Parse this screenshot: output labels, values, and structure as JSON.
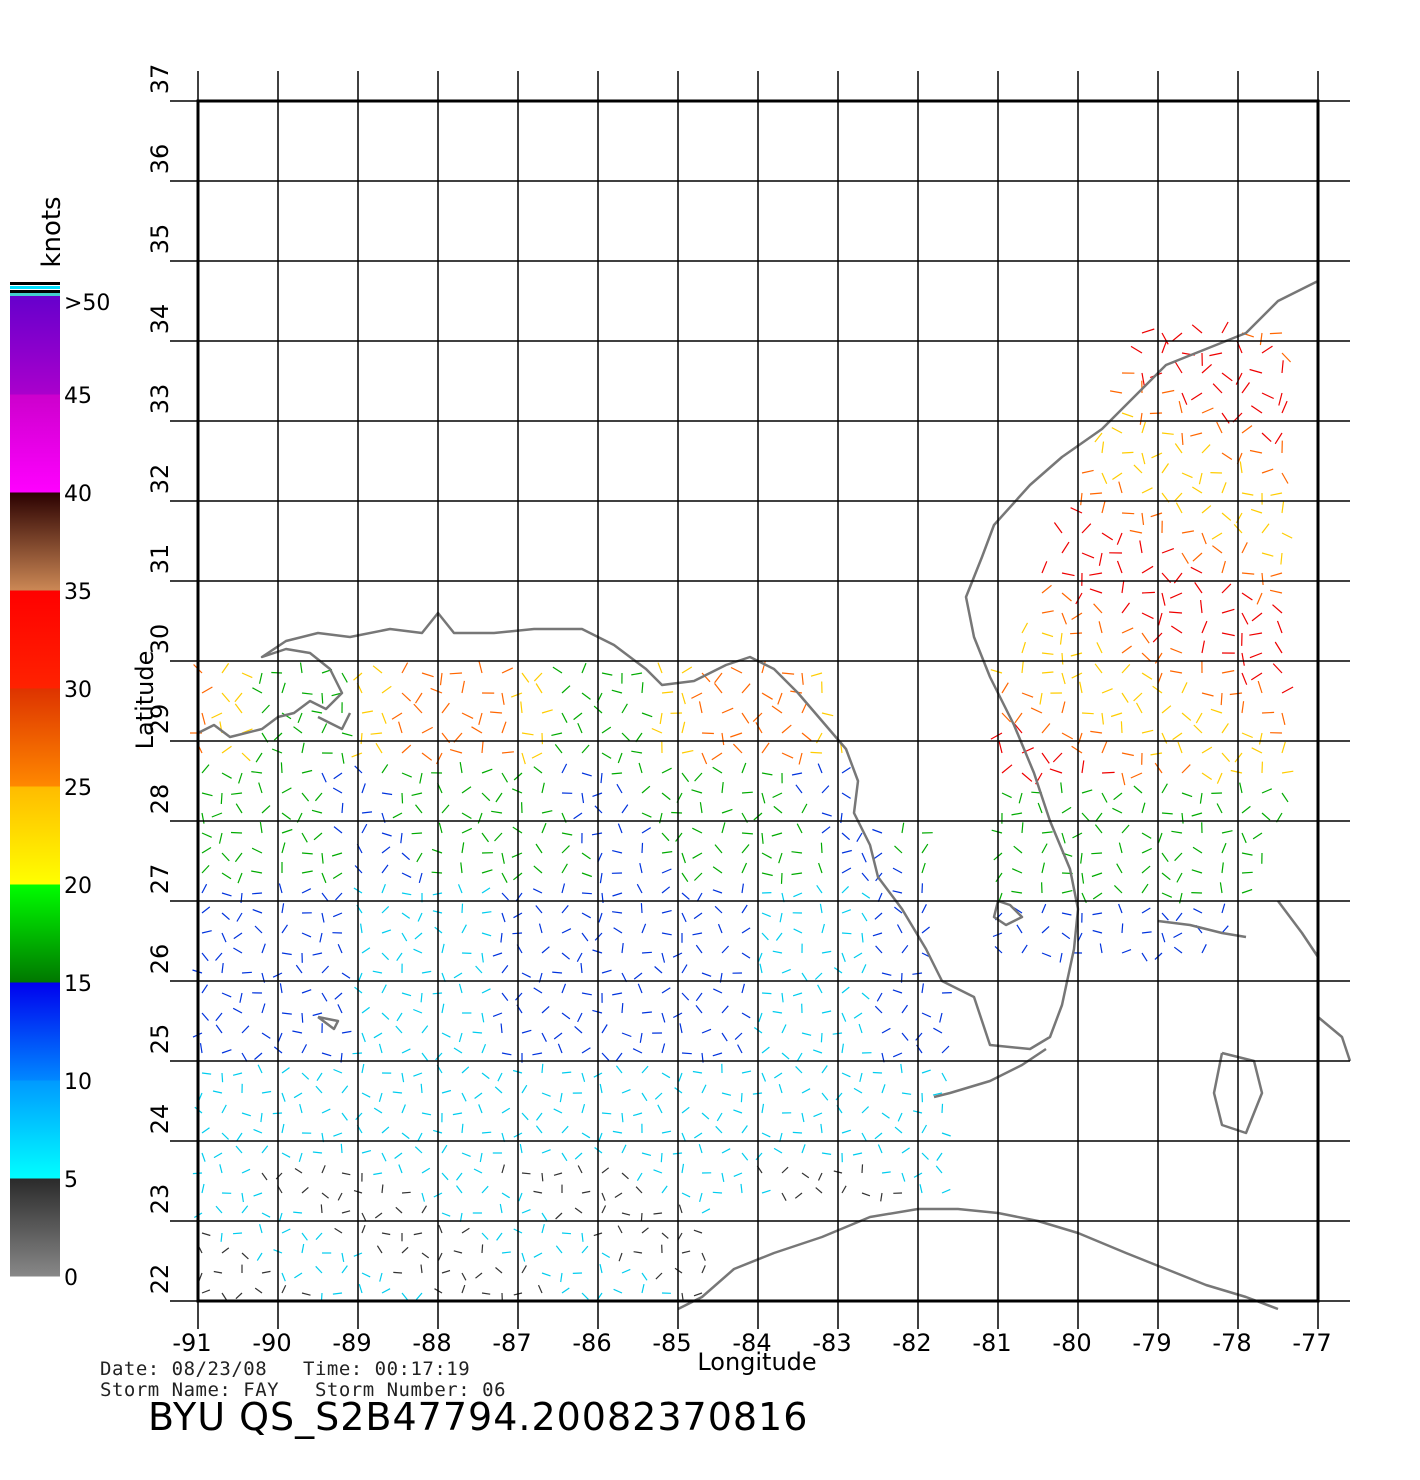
{
  "map": {
    "x_axis_label": "Longitude",
    "y_axis_label": "Latitude",
    "lon_ticks": [
      "-91",
      "-90",
      "-89",
      "-88",
      "-87",
      "-86",
      "-85",
      "-84",
      "-83",
      "-82",
      "-81",
      "-80",
      "-79",
      "-78",
      "-77"
    ],
    "lat_ticks": [
      "22",
      "23",
      "24",
      "25",
      "26",
      "27",
      "28",
      "29",
      "30",
      "31",
      "32",
      "33",
      "34",
      "35",
      "36",
      "37"
    ],
    "lon_range": [
      -91,
      -77
    ],
    "lat_range": [
      22,
      37
    ]
  },
  "colorbar": {
    "unit_label": "knots",
    "tick_labels": [
      "0",
      "5",
      "10",
      "15",
      "20",
      "25",
      "30",
      "35",
      "40",
      "45",
      ">50"
    ],
    "bands": [
      {
        "from": 0,
        "to": 5,
        "colors": [
          "#888888",
          "#2a2a2a"
        ]
      },
      {
        "from": 5,
        "to": 10,
        "colors": [
          "#00ffff",
          "#0099ff"
        ]
      },
      {
        "from": 10,
        "to": 15,
        "colors": [
          "#0088ff",
          "#0000ee"
        ]
      },
      {
        "from": 15,
        "to": 20,
        "colors": [
          "#007700",
          "#00ff00"
        ]
      },
      {
        "from": 20,
        "to": 25,
        "colors": [
          "#ffff00",
          "#ffbb00"
        ]
      },
      {
        "from": 25,
        "to": 30,
        "colors": [
          "#ff8800",
          "#dd3300"
        ]
      },
      {
        "from": 30,
        "to": 35,
        "colors": [
          "#ff2200",
          "#ff0000"
        ]
      },
      {
        "from": 35,
        "to": 40,
        "colors": [
          "#cc8855",
          "#2a0000"
        ]
      },
      {
        "from": 40,
        "to": 45,
        "colors": [
          "#ff00ff",
          "#cc00cc"
        ]
      },
      {
        "from": 45,
        "to": 50,
        "colors": [
          "#aa00cc",
          "#6600cc"
        ]
      }
    ]
  },
  "footer": {
    "date_label": "Date:",
    "date": "08/23/08",
    "time_label": "Time:",
    "time": "00:17:19",
    "storm_name_label": "Storm Name:",
    "storm_name": "FAY",
    "storm_number_label": "Storm Number:",
    "storm_number": "06",
    "product_id": "BYU QS_S2B47794.20082370816"
  },
  "colors": {
    "coastline": "#777777",
    "grid": "#000000"
  }
}
